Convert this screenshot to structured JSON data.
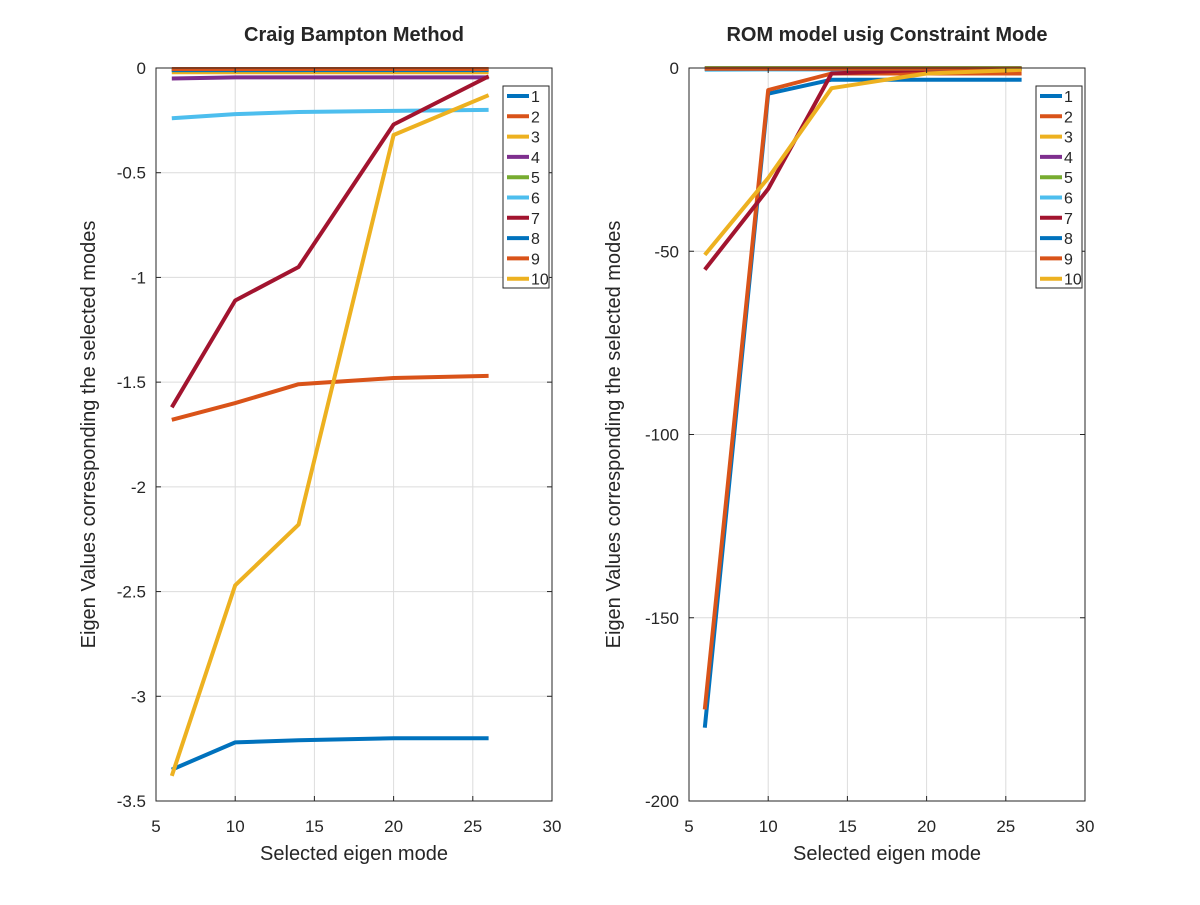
{
  "chart_data": [
    {
      "type": "line",
      "title": "Craig Bampton Method",
      "xlabel": "Selected eigen mode",
      "ylabel": "Eigen Values corresponding the selected modes",
      "xlim": [
        5,
        30
      ],
      "ylim": [
        -3.5,
        0
      ],
      "xticks": [
        5,
        10,
        15,
        20,
        25,
        30
      ],
      "xtick_labels": [
        "5",
        "10",
        "15",
        "20",
        "25",
        "30"
      ],
      "yticks": [
        -3.5,
        -3,
        -2.5,
        -2,
        -1.5,
        -1,
        -0.5,
        0
      ],
      "ytick_labels": [
        "-3.5",
        "-3",
        "-2.5",
        "-2",
        "-1.5",
        "-1",
        "-0.5",
        "0"
      ],
      "grid": true,
      "legend_position": "top-right",
      "x": [
        6,
        10,
        14,
        20,
        26
      ],
      "series": [
        {
          "name": "1",
          "color": "#0072BD",
          "values": [
            -3.35,
            -3.22,
            -3.21,
            -3.2,
            -3.2
          ]
        },
        {
          "name": "2",
          "color": "#D95319",
          "values": [
            -1.68,
            -1.6,
            -1.51,
            -1.48,
            -1.47
          ]
        },
        {
          "name": "3",
          "color": "#EDB120",
          "values": [
            -0.02,
            -0.02,
            -0.02,
            -0.02,
            -0.02
          ]
        },
        {
          "name": "4",
          "color": "#7E2F8E",
          "values": [
            -0.05,
            -0.045,
            -0.045,
            -0.045,
            -0.045
          ]
        },
        {
          "name": "5",
          "color": "#77AC30",
          "values": [
            -0.01,
            -0.01,
            -0.01,
            -0.005,
            -0.005
          ]
        },
        {
          "name": "6",
          "color": "#4DBEEE",
          "values": [
            -0.24,
            -0.22,
            -0.21,
            -0.205,
            -0.2
          ]
        },
        {
          "name": "7",
          "color": "#A2142F",
          "values": [
            -1.62,
            -1.11,
            -0.95,
            -0.27,
            -0.04
          ]
        },
        {
          "name": "8",
          "color": "#0072BD",
          "values": [
            -0.01,
            -0.01,
            -0.01,
            -0.01,
            -0.01
          ]
        },
        {
          "name": "9",
          "color": "#D95319",
          "values": [
            -0.005,
            -0.005,
            -0.005,
            -0.005,
            -0.005
          ]
        },
        {
          "name": "10",
          "color": "#EDB120",
          "values": [
            -3.38,
            -2.47,
            -2.18,
            -0.32,
            -0.13
          ]
        }
      ]
    },
    {
      "type": "line",
      "title": "ROM model usig Constraint Mode",
      "xlabel": "Selected eigen mode",
      "ylabel": "Eigen Values corresponding the selected modes",
      "xlim": [
        5,
        30
      ],
      "ylim": [
        -200,
        0
      ],
      "xticks": [
        5,
        10,
        15,
        20,
        25,
        30
      ],
      "xtick_labels": [
        "5",
        "10",
        "15",
        "20",
        "25",
        "30"
      ],
      "yticks": [
        -200,
        -150,
        -100,
        -50,
        0
      ],
      "ytick_labels": [
        "-200",
        "-150",
        "-100",
        "-50",
        "0"
      ],
      "grid": true,
      "legend_position": "top-right",
      "x": [
        6,
        10,
        14,
        20,
        26
      ],
      "series": [
        {
          "name": "1",
          "color": "#0072BD",
          "values": [
            -180,
            -7,
            -3.2,
            -3.2,
            -3.2
          ]
        },
        {
          "name": "2",
          "color": "#D95319",
          "values": [
            -175,
            -6,
            -1.5,
            -1.5,
            -1.5
          ]
        },
        {
          "name": "3",
          "color": "#EDB120",
          "values": [
            -0.3,
            -0.3,
            -0.3,
            -0.3,
            -0.3
          ]
        },
        {
          "name": "4",
          "color": "#7E2F8E",
          "values": [
            -0.1,
            -0.1,
            -0.1,
            -0.1,
            -0.1
          ]
        },
        {
          "name": "5",
          "color": "#77AC30",
          "values": [
            0,
            0,
            0,
            0,
            0
          ]
        },
        {
          "name": "6",
          "color": "#4DBEEE",
          "values": [
            -0.5,
            -0.4,
            -0.4,
            -0.4,
            -0.4
          ]
        },
        {
          "name": "7",
          "color": "#A2142F",
          "values": [
            -55,
            -33,
            -1.5,
            -0.5,
            -0.2
          ]
        },
        {
          "name": "8",
          "color": "#0072BD",
          "values": [
            -0.2,
            -0.2,
            -0.2,
            -0.2,
            -0.2
          ]
        },
        {
          "name": "9",
          "color": "#D95319",
          "values": [
            -0.2,
            -0.2,
            -0.2,
            -0.2,
            -0.2
          ]
        },
        {
          "name": "10",
          "color": "#EDB120",
          "values": [
            -51,
            -30,
            -5.5,
            -1.5,
            -0.5
          ]
        }
      ]
    }
  ]
}
